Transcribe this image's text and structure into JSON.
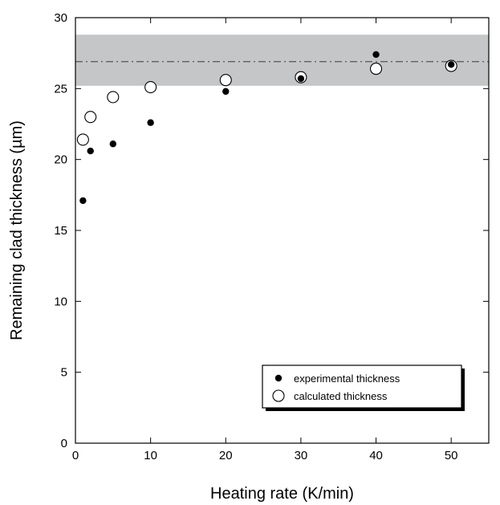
{
  "chart_data": {
    "type": "scatter",
    "xlabel": "Heating rate (K/min)",
    "ylabel": "Remaining clad thickness (µm)",
    "xlim": [
      0,
      55
    ],
    "ylim": [
      0,
      30
    ],
    "xticks": [
      0,
      10,
      20,
      30,
      40,
      50
    ],
    "yticks": [
      0,
      5,
      10,
      15,
      20,
      25,
      30
    ],
    "grid": false,
    "legend_position": "bottom-right",
    "band": {
      "y_low": 25.2,
      "y_high": 28.8,
      "color": "#c4c6c8"
    },
    "reference_line": {
      "y": 26.9,
      "style": "dash-dot",
      "color": "#555555"
    },
    "series": [
      {
        "name": "experimental thickness",
        "marker": "filled-circle",
        "color": "#000000",
        "x": [
          1,
          2,
          5,
          10,
          20,
          30,
          40,
          50
        ],
        "y": [
          17.1,
          20.6,
          21.1,
          22.6,
          24.8,
          25.7,
          27.4,
          26.7
        ]
      },
      {
        "name": "calculated thickness",
        "marker": "open-circle",
        "color": "#000000",
        "x": [
          1,
          2,
          5,
          10,
          20,
          30,
          40,
          50
        ],
        "y": [
          21.4,
          23.0,
          24.4,
          25.1,
          25.6,
          25.8,
          26.4,
          26.6
        ]
      }
    ]
  }
}
